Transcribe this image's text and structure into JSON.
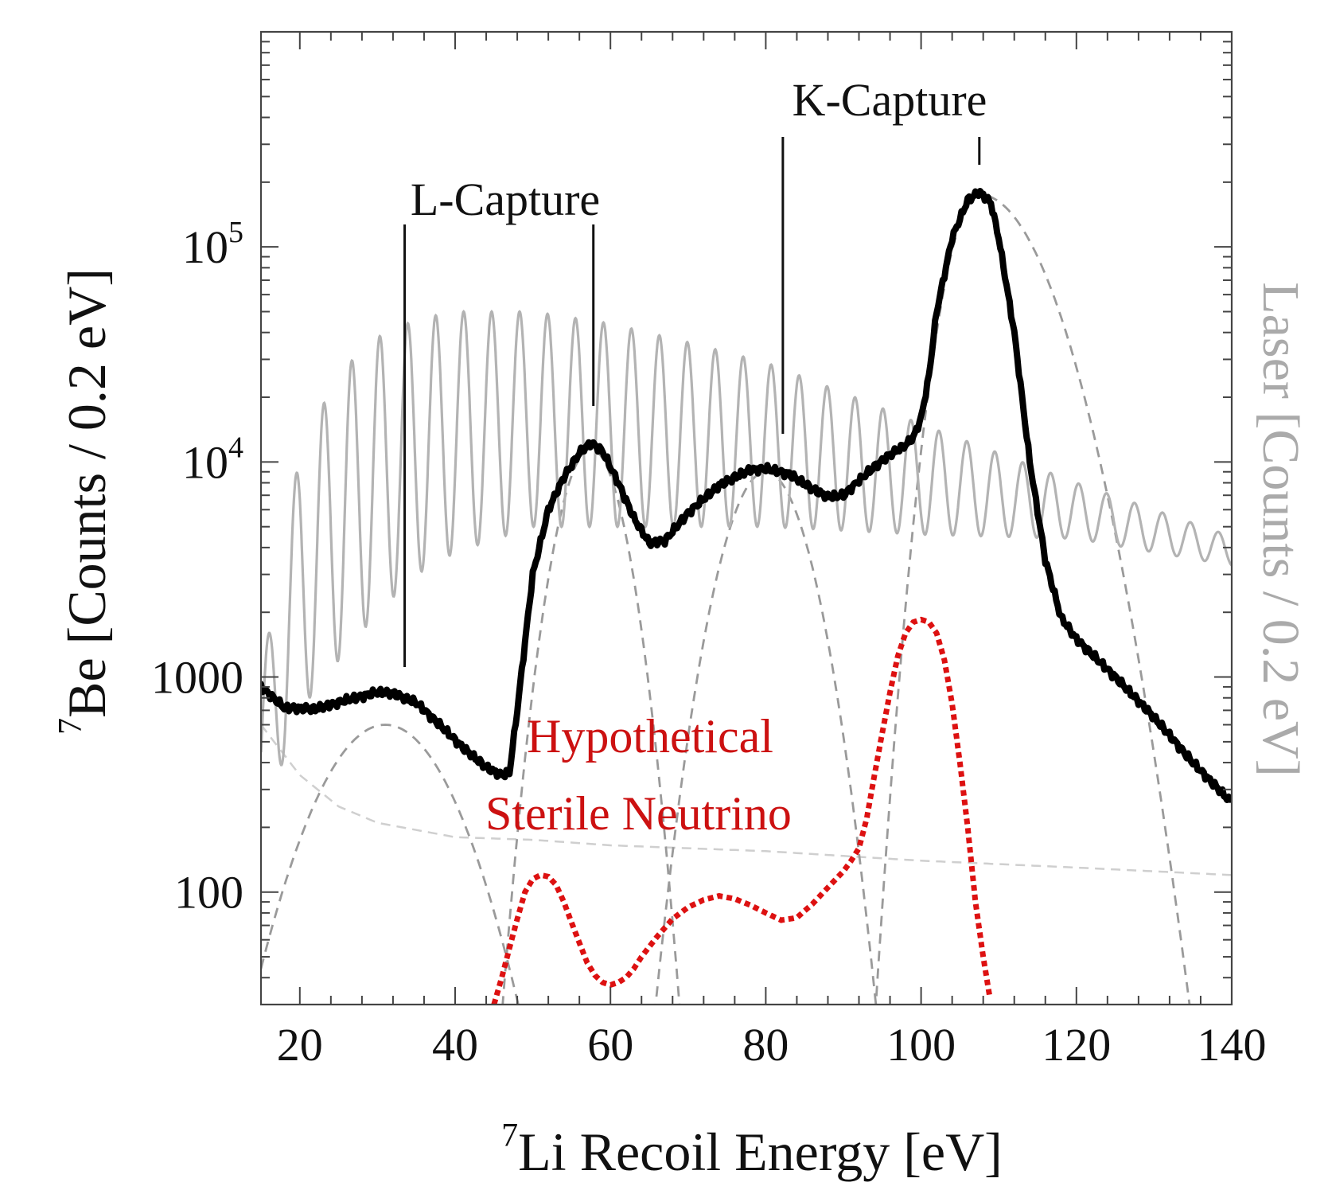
{
  "chart_data": {
    "type": "line",
    "title": "",
    "xlabel": {
      "sup": "7",
      "text": "Li Recoil Energy [eV]"
    },
    "ylabel": {
      "sup": "7",
      "text": "Be [Counts / 0.2 eV]"
    },
    "ylabel_right": "Laser [Counts / 0.2 eV]",
    "xlim": [
      15,
      140
    ],
    "ylim": [
      30,
      1000000
    ],
    "yscale": "log",
    "x_ticks": [
      20,
      40,
      60,
      80,
      100,
      120,
      140
    ],
    "y_ticks": [
      {
        "value": 100,
        "base": "100",
        "sup": ""
      },
      {
        "value": 1000,
        "base": "1000",
        "sup": ""
      },
      {
        "value": 10000,
        "base": "10",
        "sup": "4"
      },
      {
        "value": 100000,
        "base": "10",
        "sup": "5"
      }
    ],
    "annotations": [
      {
        "text": "L-Capture",
        "lines_at_x": [
          33.5,
          57.8
        ]
      },
      {
        "text": "K-Capture",
        "lines_at_x": [
          82.2,
          107.5
        ]
      },
      {
        "text": "Hypothetical\nSterile Neutrino"
      }
    ],
    "colors": {
      "be7": "#000000",
      "laser": "#b3b3b3",
      "components": "#9a9a9a",
      "background": "#cfcfcf",
      "sterile": "#dd1111",
      "annotation_red": "#cc1111"
    },
    "series": [
      {
        "label": "be7-spectrum",
        "style": "solid-thick-black",
        "x": [
          15,
          18,
          22,
          26,
          30,
          32,
          35,
          38,
          41,
          44,
          46,
          47,
          48,
          50,
          52,
          54,
          56,
          57.5,
          59,
          61,
          63,
          65,
          67,
          70,
          74,
          78,
          80,
          83,
          86,
          88,
          90,
          92,
          94,
          96,
          98,
          99,
          100,
          101,
          102,
          104,
          106,
          107.5,
          109,
          110,
          112,
          114,
          116,
          118,
          120,
          125,
          130,
          135,
          140
        ],
        "y": [
          900,
          720,
          710,
          780,
          850,
          840,
          760,
          600,
          470,
          380,
          350,
          360,
          700,
          3000,
          6000,
          8500,
          11000,
          12300,
          11200,
          8000,
          5500,
          4200,
          4300,
          5800,
          7800,
          9200,
          9300,
          8800,
          7500,
          6900,
          7000,
          8200,
          9500,
          10800,
          12000,
          13000,
          16000,
          25000,
          50000,
          110000,
          165000,
          180000,
          160000,
          110000,
          40000,
          10000,
          3500,
          1900,
          1500,
          1000,
          650,
          400,
          260
        ]
      },
      {
        "label": "laser-spectrum",
        "style": "solid-gray-oscillating",
        "x_start": 15,
        "x_end": 140,
        "period": 3.6,
        "envelope": {
          "x": [
            15,
            20,
            25,
            30,
            35,
            40,
            50,
            60,
            70,
            80,
            90,
            100,
            110,
            120,
            130,
            140
          ],
          "max": [
            1000,
            11000,
            26000,
            38000,
            46000,
            50000,
            50000,
            44000,
            36000,
            29000,
            21000,
            15000,
            11000,
            8000,
            6000,
            4500
          ],
          "min": [
            200,
            700,
            1200,
            2000,
            3000,
            3800,
            5000,
            5000,
            5000,
            5000,
            4800,
            4600,
            4500,
            4400,
            3800,
            3300
          ]
        }
      },
      {
        "label": "background",
        "style": "dashed-light-gray",
        "x": [
          15,
          20,
          25,
          30,
          40,
          50,
          60,
          80,
          100,
          120,
          140
        ],
        "y": [
          600,
          350,
          250,
          210,
          180,
          175,
          165,
          155,
          140,
          130,
          120
        ]
      },
      {
        "label": "L1-component",
        "style": "dashed-gray",
        "peak_x": 31,
        "peak_y": 600,
        "sigma": 7,
        "tail_sigma": 7
      },
      {
        "label": "L2-component",
        "style": "dashed-gray",
        "peak_x": 57.5,
        "peak_y": 11500,
        "sigma": 3.3,
        "tail_sigma": 3.3
      },
      {
        "label": "K1-component",
        "style": "dashed-gray",
        "peak_x": 80,
        "peak_y": 9000,
        "sigma": 4.2,
        "tail_sigma": 4.2
      },
      {
        "label": "K2-component",
        "style": "dashed-gray",
        "peak_x": 107.5,
        "peak_y": 175000,
        "sigma": 3.2,
        "tail_sigma": 6.5
      },
      {
        "label": "sterile-neutrino",
        "style": "dotted-red",
        "x": [
          45,
          46,
          47,
          48,
          49,
          50,
          51,
          52,
          53,
          54,
          55,
          56,
          57,
          58,
          59,
          60,
          61,
          62,
          63,
          64,
          66,
          68,
          70,
          72,
          74,
          76,
          78,
          80,
          82,
          84,
          86,
          88,
          90,
          91,
          92,
          93,
          94,
          95,
          96,
          97,
          98,
          99,
          100,
          101,
          102,
          103,
          104,
          105,
          106,
          107,
          108,
          109
        ],
        "y": [
          30,
          40,
          55,
          75,
          100,
          115,
          120,
          118,
          108,
          90,
          72,
          58,
          47,
          41,
          38,
          37,
          38,
          40,
          44,
          50,
          62,
          75,
          85,
          92,
          96,
          93,
          87,
          80,
          74,
          76,
          88,
          105,
          125,
          140,
          160,
          220,
          350,
          550,
          850,
          1250,
          1600,
          1800,
          1850,
          1800,
          1600,
          1200,
          750,
          400,
          200,
          90,
          50,
          30
        ]
      }
    ]
  }
}
